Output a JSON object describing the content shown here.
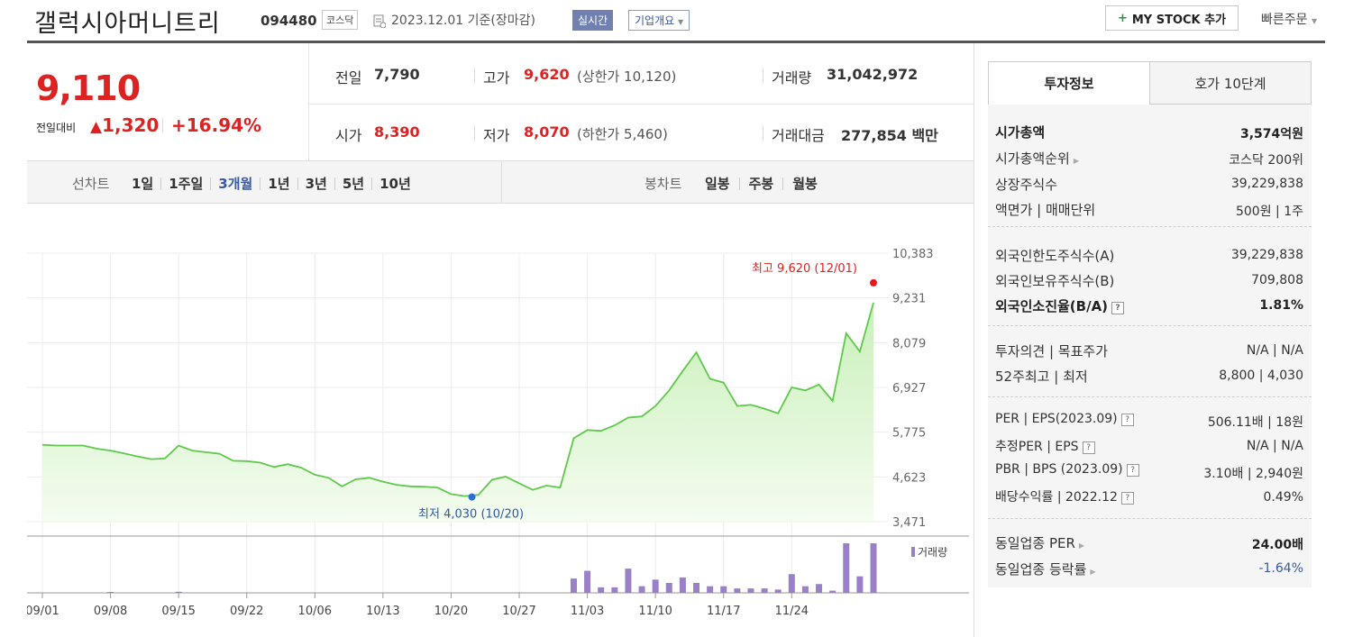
{
  "header": {
    "name": "갤럭시아머니트리",
    "code": "094480",
    "market": "코스닥",
    "date": "2023.12.01",
    "date_suffix": "기준(장마감)",
    "realtime": "실시간",
    "company_overview": "기업개요",
    "my_stock": "MY STOCK 추가",
    "fast_order": "빠른주문"
  },
  "quote": {
    "price": "9,110",
    "change_label": "전일대비",
    "change": "1,320",
    "change_pct": "+16.94%",
    "prev_label": "전일",
    "prev": "7,790",
    "high_label": "고가",
    "high": "9,620",
    "upper_label": "(상한가 10,120)",
    "volume_label": "거래량",
    "volume": "31,042,972",
    "open_label": "시가",
    "open": "8,390",
    "low_label": "저가",
    "low": "8,070",
    "lower_label": "(하한가 5,460)",
    "amount_label": "거래대금",
    "amount": "277,854",
    "amount_unit": "백만"
  },
  "periods": {
    "line_label": "선차트",
    "items": [
      "1일",
      "1주일",
      "3개월",
      "1년",
      "3년",
      "5년",
      "10년"
    ],
    "selected": "3개월",
    "candle_label": "봉차트",
    "candle_items": [
      "일봉",
      "주봉",
      "월봉"
    ]
  },
  "tabs": {
    "info": "투자정보",
    "hoga": "호가 10단계"
  },
  "info": {
    "g1": [
      {
        "label": "시가총액",
        "value": "3,574억원"
      },
      {
        "label": "시가총액순위",
        "value": "코스닥 200위"
      },
      {
        "label": "상장주식수",
        "value": "39,229,838"
      },
      {
        "label": "액면가 | 매매단위",
        "value": "500원 | 1주"
      }
    ],
    "g2": [
      {
        "label": "외국인한도주식수(A)",
        "value": "39,229,838"
      },
      {
        "label": "외국인보유주식수(B)",
        "value": "709,808"
      },
      {
        "label": "외국인소진율(B/A)",
        "value": "1.81%"
      }
    ],
    "g3": [
      {
        "label": "투자의견 | 목표주가",
        "value": "N/A | N/A"
      },
      {
        "label": "52주최고 | 최저",
        "value": "8,800 | 4,030"
      }
    ],
    "g4": [
      {
        "label": "PER | EPS(2023.09)",
        "value": "506.11배 | 18원"
      },
      {
        "label": "추정PER | EPS",
        "value": "N/A | N/A"
      },
      {
        "label": "PBR | BPS (2023.09)",
        "value": "3.10배 | 2,940원"
      },
      {
        "label": "배당수익률 | 2022.12",
        "value": "0.49%"
      }
    ],
    "g5": [
      {
        "label": "동일업종 PER",
        "value": "24.00배"
      },
      {
        "label": "동일업종 등락률",
        "value": "-1.64%"
      }
    ]
  },
  "chart_data": {
    "type": "area",
    "y_ticks": [
      10383,
      9231,
      8079,
      6927,
      5775,
      4623,
      3471
    ],
    "y_tick_labels": [
      "10,383",
      "9,231",
      "8,079",
      "6,927",
      "5,775",
      "4,623",
      "3,471"
    ],
    "x_tick_labels": [
      "09/01",
      "09/08",
      "09/15",
      "09/22",
      "10/06",
      "10/13",
      "10/20",
      "10/27",
      "11/03",
      "11/10",
      "11/17",
      "11/24"
    ],
    "ylim": [
      3471,
      10383
    ],
    "high_annotation": "최고 9,620 (12/01)",
    "low_annotation": "최저 4,030 (10/20)",
    "volume_label": "거래량",
    "color": "#5ec94a",
    "values": [
      5450,
      5430,
      5430,
      5430,
      5350,
      5300,
      5230,
      5150,
      5080,
      5100,
      5430,
      5300,
      5260,
      5220,
      5040,
      5030,
      4990,
      4880,
      4950,
      4860,
      4680,
      4600,
      4380,
      4560,
      4600,
      4500,
      4420,
      4380,
      4370,
      4350,
      4180,
      4130,
      4160,
      4550,
      4630,
      4460,
      4290,
      4400,
      4350,
      5620,
      5830,
      5810,
      5950,
      6150,
      6180,
      6450,
      6850,
      7350,
      7830,
      7150,
      7050,
      6450,
      6480,
      6380,
      6260,
      6930,
      6850,
      7000,
      6580,
      8320,
      7850,
      9110
    ],
    "volume": [
      0,
      0,
      0,
      0,
      0,
      0.8,
      0,
      0,
      0,
      0,
      1,
      0,
      0,
      0,
      0,
      0,
      0,
      0,
      0,
      0,
      0,
      0,
      0,
      0,
      0,
      0,
      0,
      0,
      0,
      0,
      0,
      0,
      0,
      0,
      0,
      0,
      0,
      0,
      0,
      13,
      20,
      5,
      5,
      22,
      6,
      12,
      9,
      14,
      9,
      6,
      6,
      4,
      4,
      4,
      3,
      17,
      6,
      8,
      2,
      45,
      15,
      45
    ]
  }
}
